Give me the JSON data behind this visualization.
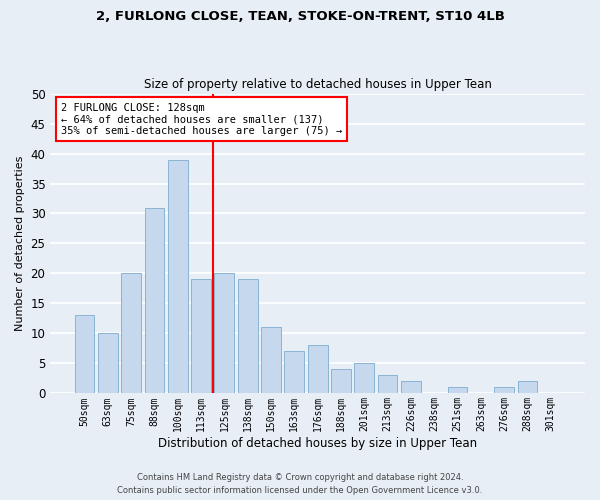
{
  "title": "2, FURLONG CLOSE, TEAN, STOKE-ON-TRENT, ST10 4LB",
  "subtitle": "Size of property relative to detached houses in Upper Tean",
  "xlabel": "Distribution of detached houses by size in Upper Tean",
  "ylabel": "Number of detached properties",
  "footer_line1": "Contains HM Land Registry data © Crown copyright and database right 2024.",
  "footer_line2": "Contains public sector information licensed under the Open Government Licence v3.0.",
  "bin_labels": [
    "50sqm",
    "63sqm",
    "75sqm",
    "88sqm",
    "100sqm",
    "113sqm",
    "125sqm",
    "138sqm",
    "150sqm",
    "163sqm",
    "176sqm",
    "188sqm",
    "201sqm",
    "213sqm",
    "226sqm",
    "238sqm",
    "251sqm",
    "263sqm",
    "276sqm",
    "288sqm",
    "301sqm"
  ],
  "bin_values": [
    13,
    10,
    20,
    31,
    39,
    19,
    20,
    19,
    11,
    7,
    8,
    4,
    5,
    3,
    2,
    0,
    1,
    0,
    1,
    2,
    0
  ],
  "bar_color": "#c5d8ed",
  "bar_edgecolor": "#8ab4d4",
  "vline_x_index": 6,
  "vline_color": "red",
  "annotation_title": "2 FURLONG CLOSE: 128sqm",
  "annotation_line1": "← 64% of detached houses are smaller (137)",
  "annotation_line2": "35% of semi-detached houses are larger (75) →",
  "annotation_box_color": "white",
  "annotation_box_edgecolor": "red",
  "ylim": [
    0,
    50
  ],
  "background_color": "#e8eef6"
}
